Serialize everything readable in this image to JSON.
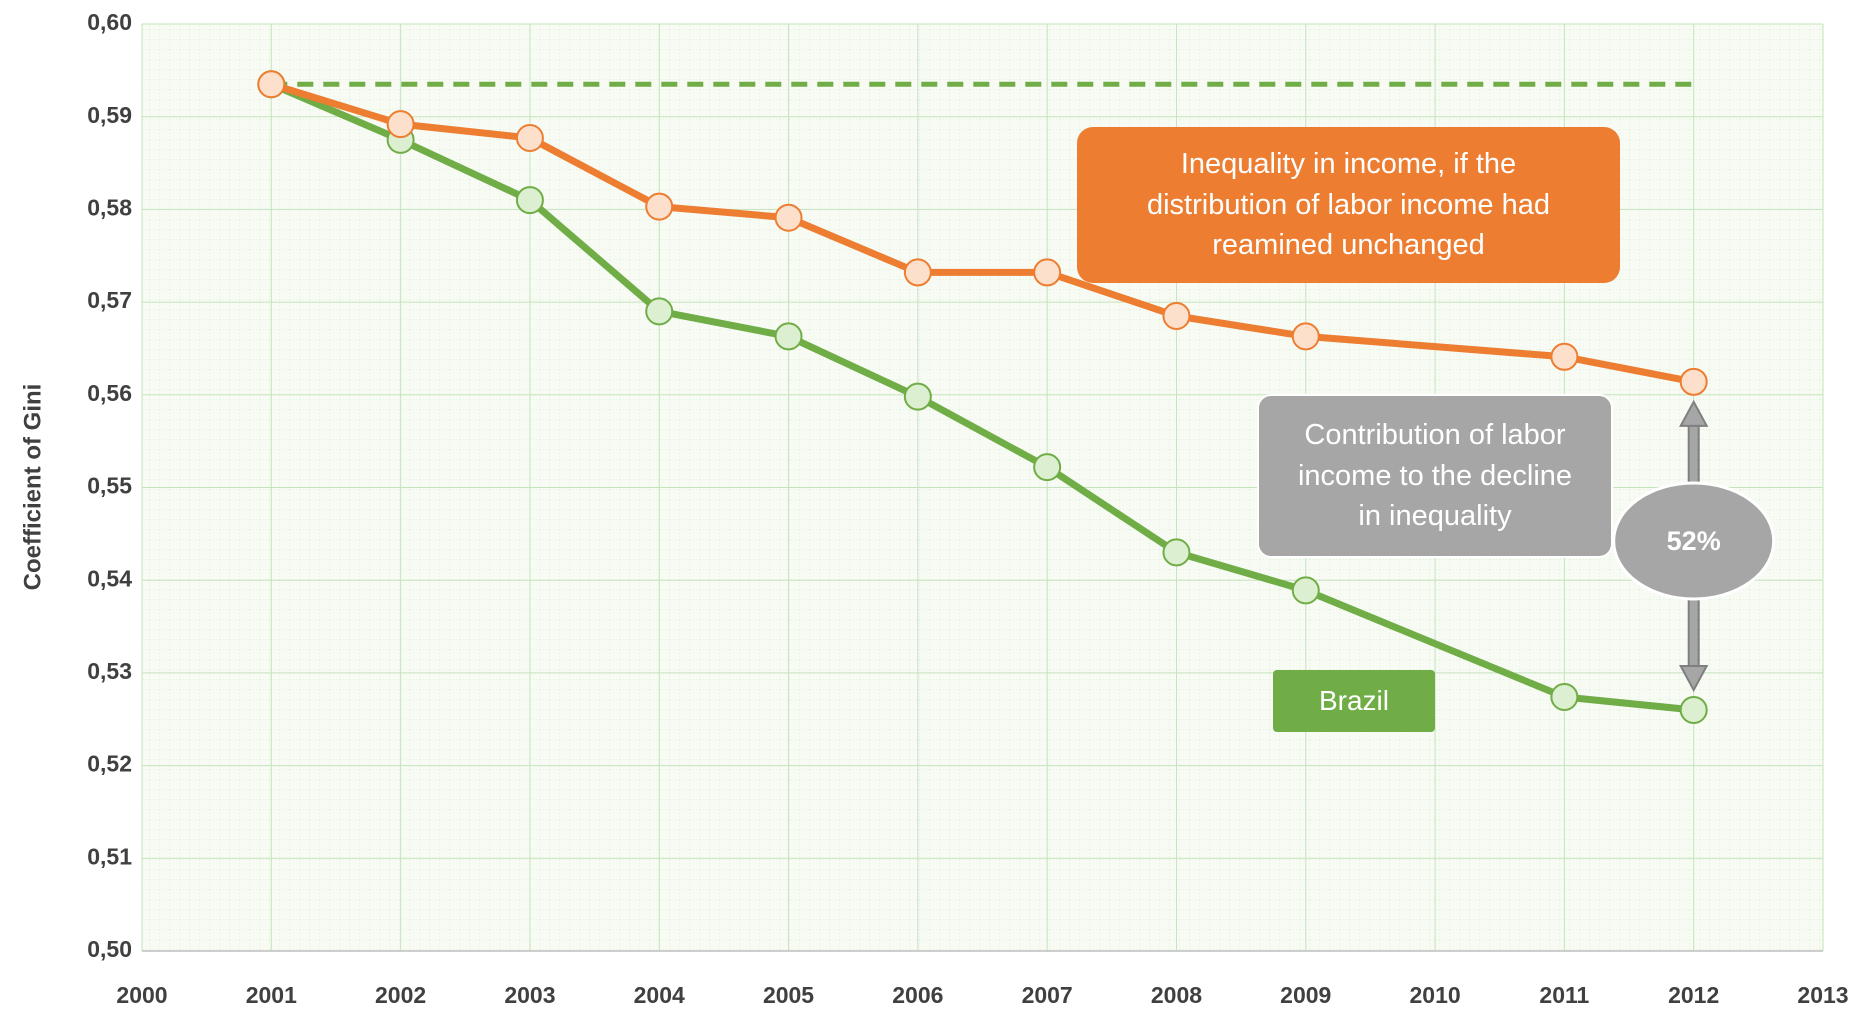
{
  "chart_data": {
    "type": "line",
    "y_label": "Coefficient of Gini",
    "x": [
      2001,
      2002,
      2003,
      2004,
      2005,
      2006,
      2007,
      2008,
      2009,
      2011,
      2012
    ],
    "series": [
      {
        "name": "Brazil",
        "color": "#70ad47",
        "marker_fill": "#dcefd0",
        "values": [
          0.5935,
          0.5875,
          0.581,
          0.569,
          0.5663,
          0.5598,
          0.5522,
          0.543,
          0.5389,
          0.5274,
          0.526
        ]
      },
      {
        "name": "Inequality in income, if the distribution of labor income had reamined unchanged",
        "color": "#ed7d31",
        "marker_fill": "#fde0cc",
        "values": [
          0.5935,
          0.5892,
          0.5877,
          0.5803,
          0.5791,
          0.5732,
          0.5732,
          0.5685,
          0.5663,
          0.5641,
          0.5614
        ]
      }
    ],
    "reference": {
      "value": 0.5935,
      "x": [
        2001,
        2012
      ],
      "color": "#70ad47",
      "dashed": true
    },
    "annotations": [
      {
        "text": "Contribution of labor income to the decline in inequality",
        "color": "#a6a6a6"
      },
      {
        "text": "52%",
        "color": "#a6a6a6"
      }
    ],
    "xlim": [
      2000,
      2013
    ],
    "xticks": [
      2000,
      2001,
      2002,
      2003,
      2004,
      2005,
      2006,
      2007,
      2008,
      2009,
      2010,
      2011,
      2012,
      2013
    ],
    "ylim": [
      0.5,
      0.6
    ],
    "yticks": [
      {
        "value": 0.5,
        "label": "0,50"
      },
      {
        "value": 0.51,
        "label": "0,51"
      },
      {
        "value": 0.52,
        "label": "0,52"
      },
      {
        "value": 0.53,
        "label": "0,53"
      },
      {
        "value": 0.54,
        "label": "0,54"
      },
      {
        "value": 0.55,
        "label": "0,55"
      },
      {
        "value": 0.56,
        "label": "0,56"
      },
      {
        "value": 0.57,
        "label": "0,57"
      },
      {
        "value": 0.58,
        "label": "0,58"
      },
      {
        "value": 0.59,
        "label": "0,59"
      },
      {
        "value": 0.6,
        "label": "0,60"
      }
    ],
    "grid": true
  }
}
